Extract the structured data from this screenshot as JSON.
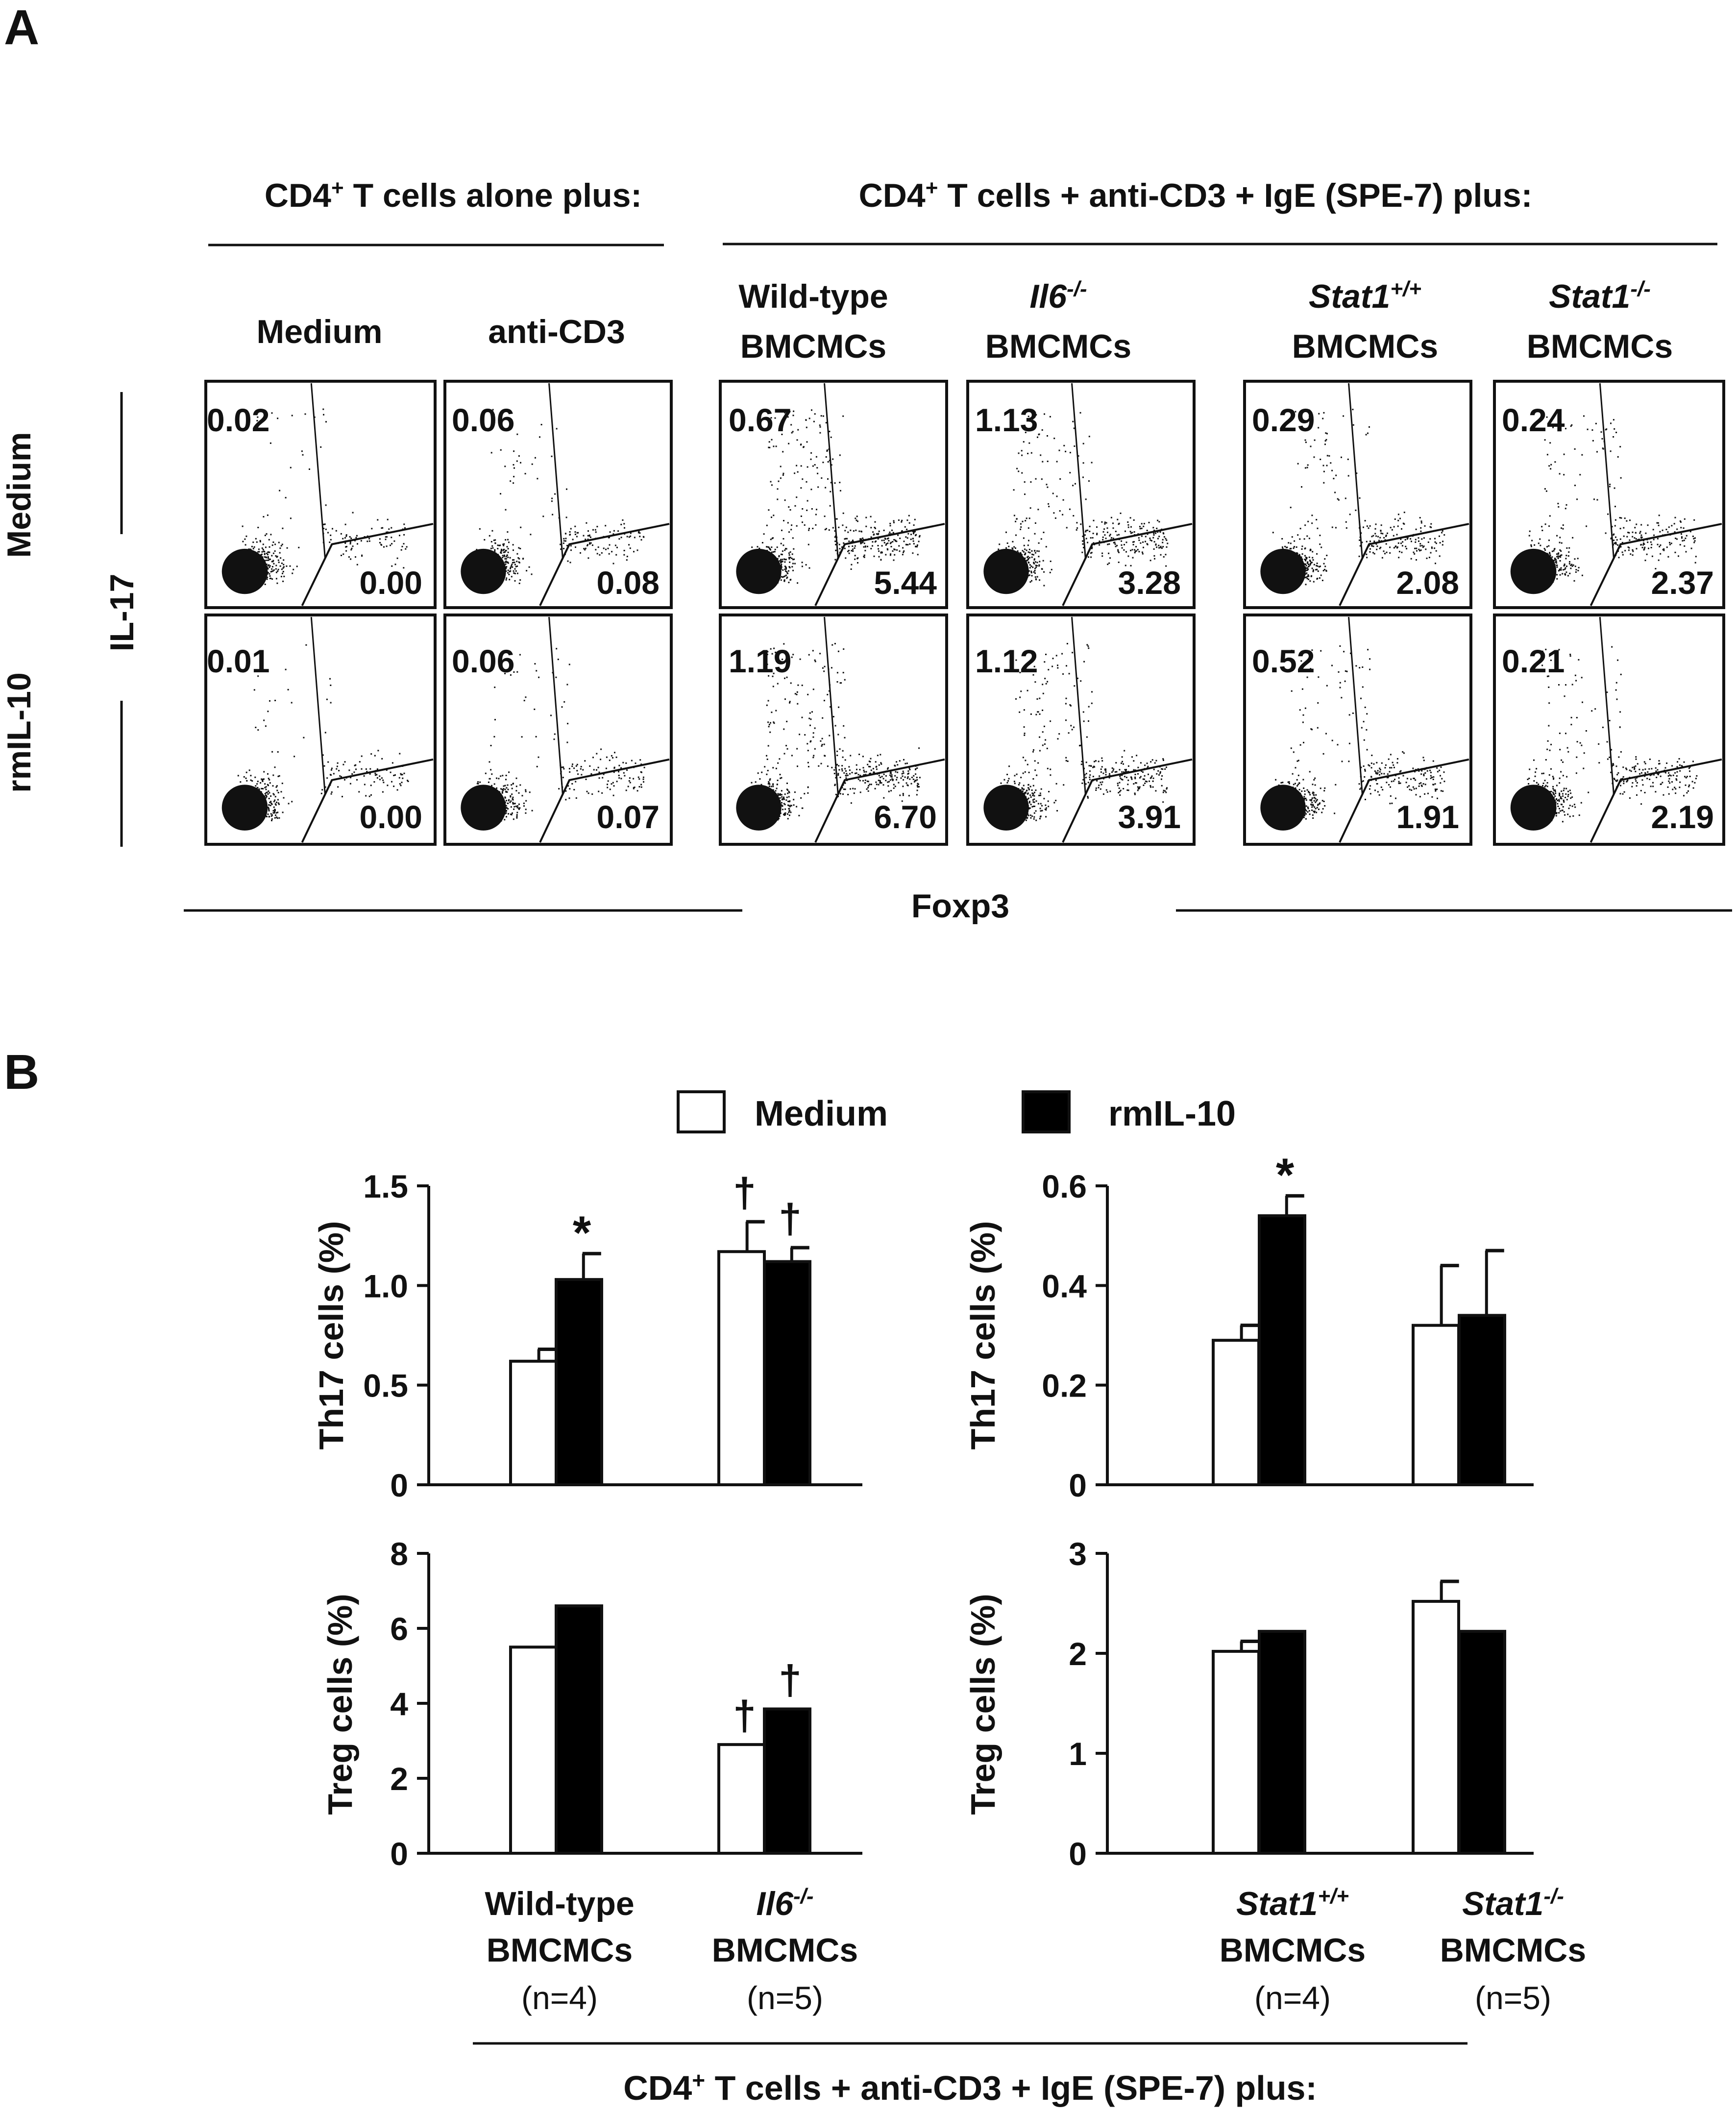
{
  "panel_a": {
    "label": "A",
    "group_left": {
      "prefix": "CD4",
      "sup": "+",
      "suffix": " T cells alone plus:"
    },
    "group_right": {
      "prefix": "CD4",
      "sup": "+",
      "suffix": " T cells + anti-CD3 + IgE (SPE-7) plus:"
    },
    "columns": [
      {
        "line1": "Medium"
      },
      {
        "line1": "anti-CD3"
      },
      {
        "line1": "Wild-type",
        "line2": "BMCMCs"
      },
      {
        "gene": "Il6",
        "sup": "-/-",
        "line2": "BMCMCs"
      },
      {
        "gene": "Stat1",
        "sup": "+/+",
        "line2": "BMCMCs"
      },
      {
        "gene": "Stat1",
        "sup": "-/-",
        "line2": "BMCMCs"
      }
    ],
    "rows": [
      "Medium",
      "rmIL-10"
    ],
    "y_axis_label": "IL-17",
    "x_axis_label": "Foxp3",
    "values": {
      "medium_il17": [
        "0.02",
        "0.06",
        "0.67",
        "1.13",
        "0.29",
        "0.24"
      ],
      "medium_foxp3": [
        "0.00",
        "0.08",
        "5.44",
        "3.28",
        "2.08",
        "2.37"
      ],
      "rmil10_il17": [
        "0.01",
        "0.06",
        "1.19",
        "1.12",
        "0.52",
        "0.21"
      ],
      "rmil10_foxp3": [
        "0.00",
        "0.07",
        "6.70",
        "3.91",
        "1.91",
        "2.19"
      ]
    }
  },
  "panel_b": {
    "label": "B",
    "legend": {
      "medium": "Medium",
      "rmil10": "rmIL-10"
    },
    "colors": {
      "medium": "#ffffff",
      "rmil10": "#000000",
      "stroke": "#111111"
    },
    "groups": {
      "il6": [
        {
          "line1": "Wild-type",
          "line2": "BMCMCs",
          "n": "(n=4)"
        },
        {
          "gene": "Il6",
          "sup": "-/-",
          "line2": "BMCMCs",
          "n": "(n=5)"
        }
      ],
      "stat1": [
        {
          "gene": "Stat1",
          "sup": "+/+",
          "line2": "BMCMCs",
          "n": "(n=4)"
        },
        {
          "gene": "Stat1",
          "sup": "-/-",
          "line2": "BMCMCs",
          "n": "(n=5)"
        }
      ]
    },
    "bottom_caption": {
      "prefix": "CD4",
      "sup": "+",
      "suffix": " T cells + anti-CD3 + IgE (SPE-7) plus:"
    }
  },
  "chart_data": [
    {
      "type": "bar",
      "panel": "B-top-left",
      "categories": [
        "Wild-type BMCMCs",
        "Il6-/- BMCMCs"
      ],
      "ylabel": "Th17 cells (%)",
      "ylim": [
        0,
        1.5
      ],
      "yticks": [
        0,
        0.5,
        1.0,
        1.5
      ],
      "tick_labels": [
        "0",
        "0.5",
        "1.0",
        "1.5"
      ],
      "series": [
        {
          "name": "Medium",
          "values": [
            0.62,
            1.17
          ],
          "errors": [
            0.06,
            0.15
          ],
          "marks": [
            "",
            "†"
          ]
        },
        {
          "name": "rmIL-10",
          "values": [
            1.03,
            1.12
          ],
          "errors": [
            0.13,
            0.07
          ],
          "marks": [
            "*",
            "†"
          ]
        }
      ]
    },
    {
      "type": "bar",
      "panel": "B-top-right",
      "categories": [
        "Stat1+/+ BMCMCs",
        "Stat1-/- BMCMCs"
      ],
      "ylabel": "Th17 cells (%)",
      "ylim": [
        0,
        0.6
      ],
      "yticks": [
        0,
        0.2,
        0.4,
        0.6
      ],
      "tick_labels": [
        "0",
        "0.2",
        "0.4",
        "0.6"
      ],
      "series": [
        {
          "name": "Medium",
          "values": [
            0.29,
            0.32
          ],
          "errors": [
            0.03,
            0.12
          ],
          "marks": [
            "",
            ""
          ]
        },
        {
          "name": "rmIL-10",
          "values": [
            0.54,
            0.34
          ],
          "errors": [
            0.04,
            0.13
          ],
          "marks": [
            "*",
            ""
          ]
        }
      ]
    },
    {
      "type": "bar",
      "panel": "B-bottom-left",
      "categories": [
        "Wild-type BMCMCs",
        "Il6-/- BMCMCs"
      ],
      "ylabel": "Treg cells (%)",
      "ylim": [
        0,
        8
      ],
      "yticks": [
        0,
        2,
        4,
        6,
        8
      ],
      "tick_labels": [
        "0",
        "2",
        "4",
        "6",
        "8"
      ],
      "series": [
        {
          "name": "Medium",
          "values": [
            5.5,
            2.9
          ],
          "errors": [
            0,
            0
          ],
          "marks": [
            "",
            "†"
          ]
        },
        {
          "name": "rmIL-10",
          "values": [
            6.6,
            3.85
          ],
          "errors": [
            0,
            0
          ],
          "marks": [
            "",
            "†"
          ]
        }
      ]
    },
    {
      "type": "bar",
      "panel": "B-bottom-right",
      "categories": [
        "Stat1+/+ BMCMCs",
        "Stat1-/- BMCMCs"
      ],
      "ylabel": "Treg cells (%)",
      "ylim": [
        0,
        3
      ],
      "yticks": [
        0,
        1,
        2,
        3
      ],
      "tick_labels": [
        "0",
        "1",
        "2",
        "3"
      ],
      "series": [
        {
          "name": "Medium",
          "values": [
            2.02,
            2.52
          ],
          "errors": [
            0.1,
            0.2
          ],
          "marks": [
            "",
            ""
          ]
        },
        {
          "name": "rmIL-10",
          "values": [
            2.22,
            2.22
          ],
          "errors": [
            0,
            0
          ],
          "marks": [
            "",
            ""
          ]
        }
      ]
    }
  ]
}
